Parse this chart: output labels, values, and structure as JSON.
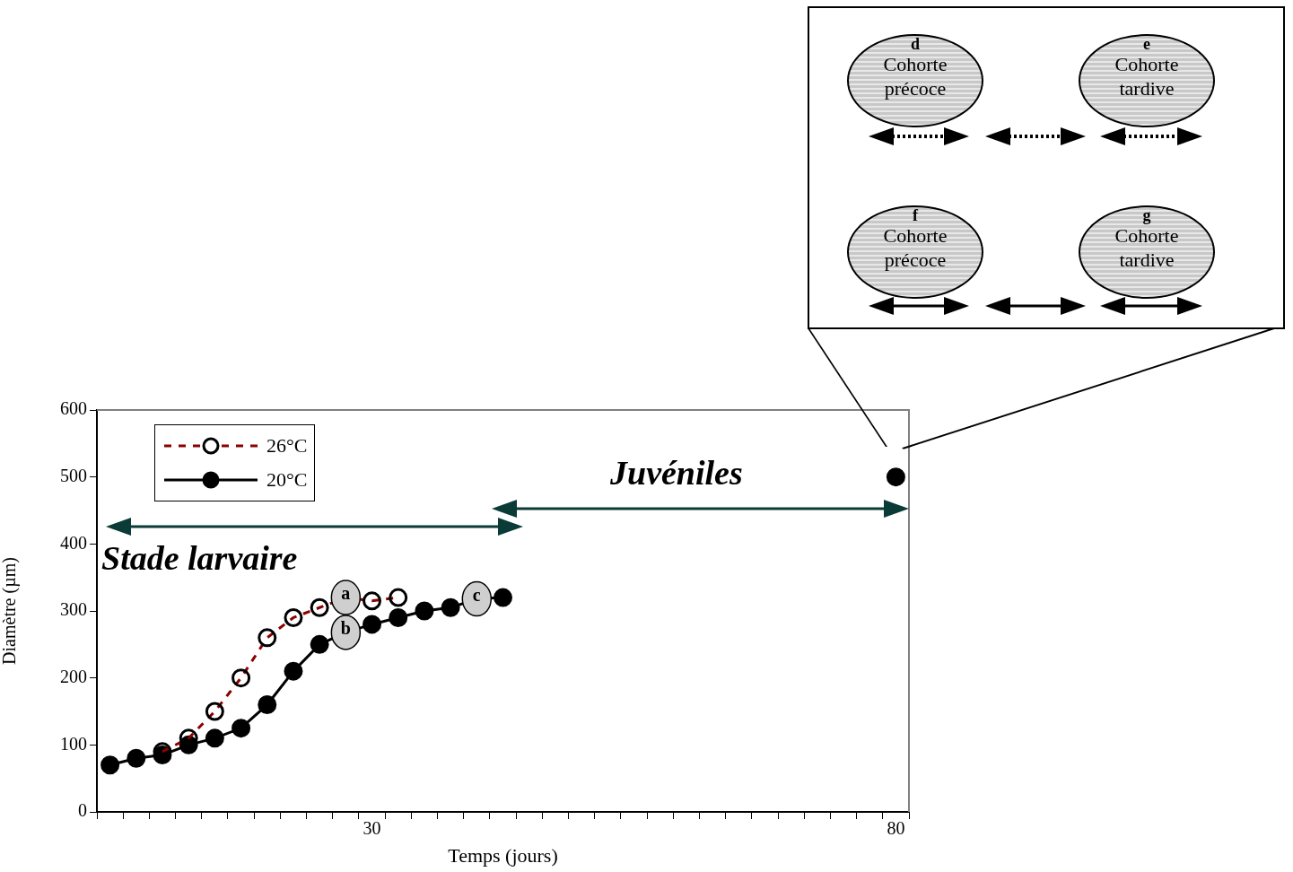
{
  "chart_data": {
    "type": "line",
    "xlabel": "Temps (jours)",
    "ylabel": "Diamètre (µm)",
    "categories": [
      null,
      null,
      null,
      null,
      null,
      null,
      null,
      null,
      null,
      null,
      "30",
      null,
      null,
      null,
      null,
      null,
      null,
      null,
      null,
      null,
      null,
      null,
      null,
      null,
      null,
      null,
      null,
      null,
      null,
      null,
      "80"
    ],
    "ylim": [
      0,
      600
    ],
    "yticks": [
      0,
      100,
      200,
      300,
      400,
      500,
      600
    ],
    "grid": false,
    "legend": "top left",
    "marker": "circle",
    "series": [
      {
        "name": "26°C",
        "color": "#8b0000",
        "line_style": "dashed",
        "values": [
          null,
          null,
          90,
          110,
          150,
          200,
          260,
          290,
          305,
          320,
          315,
          320,
          null,
          null,
          null,
          null,
          null,
          null,
          null,
          null,
          null,
          null,
          null,
          null,
          null,
          null,
          null,
          null,
          null,
          null,
          null
        ],
        "value_labels": [
          null,
          null,
          null,
          null,
          null,
          null,
          null,
          null,
          null,
          "a",
          null,
          null,
          null,
          null,
          null,
          null,
          null,
          null,
          null,
          null,
          null,
          null,
          null,
          null,
          null,
          null,
          null,
          null,
          null,
          null,
          null
        ]
      },
      {
        "name": "20°C",
        "color": "#000000",
        "line_style": "solid",
        "values": [
          70,
          80,
          85,
          100,
          110,
          125,
          160,
          210,
          250,
          268,
          280,
          290,
          300,
          305,
          318,
          320,
          null,
          null,
          null,
          null,
          null,
          null,
          null,
          null,
          null,
          null,
          null,
          null,
          null,
          null,
          500
        ],
        "value_labels": [
          null,
          null,
          null,
          null,
          null,
          null,
          null,
          null,
          null,
          "b",
          null,
          null,
          null,
          null,
          "c",
          null,
          null,
          null,
          null,
          null,
          null,
          null,
          null,
          null,
          null,
          null,
          null,
          null,
          null,
          null,
          null
        ]
      }
    ],
    "annotations": [
      "Stade larvaire",
      "Juvéniles",
      "d",
      "Cohorte précoce",
      "e",
      "Cohorte tardive",
      "f",
      "Cohorte précoce",
      "g",
      "Cohorte tardive"
    ]
  }
}
